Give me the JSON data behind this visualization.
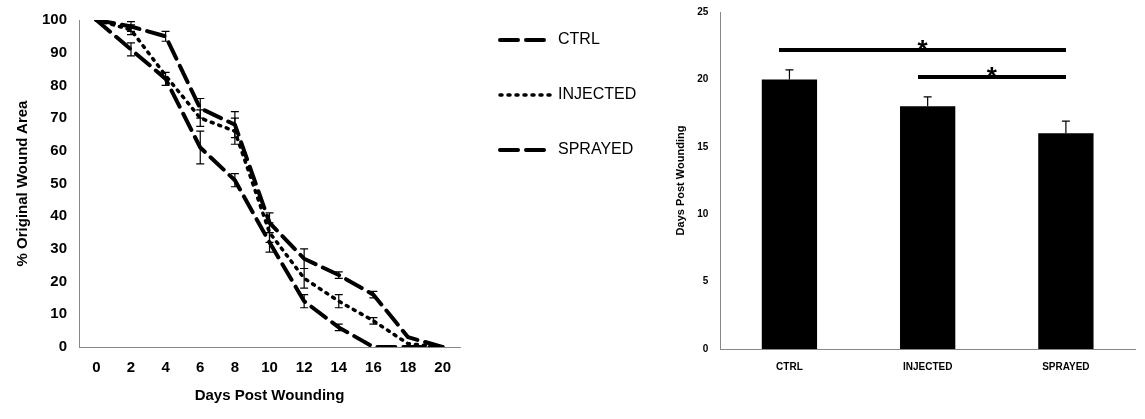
{
  "chart_data": [
    {
      "type": "line",
      "xlabel": "Days Post Wounding",
      "ylabel": "% Original Wound Area",
      "x": [
        0,
        2,
        4,
        6,
        8,
        10,
        12,
        14,
        16,
        18,
        20
      ],
      "xlim": [
        -1,
        21
      ],
      "xticks": [
        0,
        2,
        4,
        6,
        8,
        10,
        12,
        14,
        16,
        18,
        20
      ],
      "ylim": [
        0,
        100
      ],
      "yticks": [
        0,
        10,
        20,
        30,
        40,
        50,
        60,
        70,
        80,
        90,
        100
      ],
      "grid": false,
      "legend": "right",
      "marker": "none",
      "series": [
        {
          "name": "CTRL",
          "color": "#000000",
          "line_style": "dashed",
          "values": [
            100,
            98,
            95,
            73,
            68,
            38,
            27,
            22,
            16,
            3,
            0
          ],
          "errors": [
            null,
            1.5,
            1.5,
            3,
            4,
            3,
            3,
            1,
            1,
            null,
            null
          ]
        },
        {
          "name": "INJECTED",
          "color": "#000000",
          "line_style": "dotted",
          "values": [
            100,
            97,
            83,
            70,
            66,
            35,
            21,
            14,
            8,
            1,
            0
          ],
          "errors": [
            null,
            1.5,
            null,
            2.5,
            4,
            3,
            3,
            2,
            1,
            null,
            null
          ]
        },
        {
          "name": "SPRAYED",
          "color": "#000000",
          "line_style": "dashed",
          "values": [
            100,
            91,
            82,
            61,
            51,
            32,
            14,
            6,
            0,
            0,
            0
          ],
          "errors": [
            null,
            2,
            2,
            5,
            2,
            3,
            2,
            1,
            null,
            null,
            null
          ]
        }
      ]
    },
    {
      "type": "bar",
      "ylabel": "Days Post Wounding",
      "categories": [
        "CTRL",
        "INJECTED",
        "SPRAYED"
      ],
      "values": [
        20,
        18,
        16
      ],
      "errors": [
        [
          20,
          20.7
        ],
        [
          18,
          18.7
        ],
        [
          16,
          16.9
        ]
      ],
      "color": "#000000",
      "ylim": [
        0,
        25
      ],
      "yticks": [
        0,
        5,
        10,
        15,
        20,
        25
      ],
      "grid": false,
      "legend": false,
      "annotations": [
        "*",
        "*"
      ]
    }
  ]
}
